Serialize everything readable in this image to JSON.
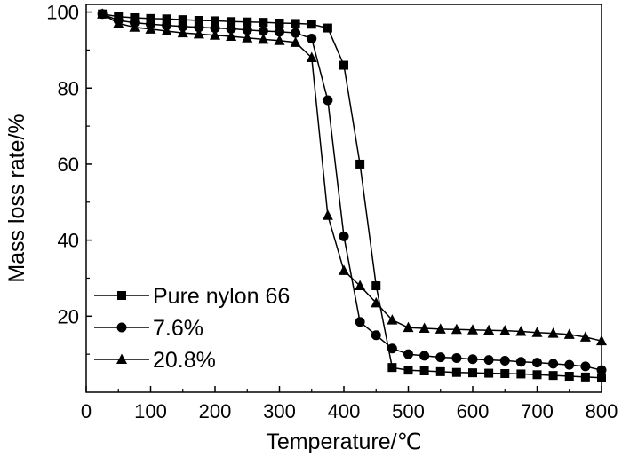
{
  "chart_data": {
    "type": "line",
    "title": "",
    "xlabel": "Temperature/℃",
    "ylabel": "Mass loss rate/%",
    "xlim": [
      0,
      800
    ],
    "ylim": [
      0,
      102
    ],
    "xticks": [
      0,
      100,
      200,
      300,
      400,
      500,
      600,
      700,
      800
    ],
    "yticks": [
      20,
      40,
      60,
      80,
      100
    ],
    "grid": false,
    "legend_position": "bottom-left",
    "series": [
      {
        "name": "Pure nylon 66",
        "marker": "square",
        "x": [
          25,
          50,
          75,
          100,
          125,
          150,
          175,
          200,
          225,
          250,
          275,
          300,
          325,
          350,
          375,
          400,
          425,
          450,
          475,
          500,
          525,
          550,
          575,
          600,
          625,
          650,
          675,
          700,
          725,
          750,
          775,
          800
        ],
        "y": [
          99.5,
          98.8,
          98.5,
          98.3,
          98.2,
          98.0,
          97.8,
          97.7,
          97.5,
          97.4,
          97.3,
          97.1,
          97.0,
          96.8,
          95.8,
          86.0,
          60.0,
          28.0,
          6.5,
          5.8,
          5.6,
          5.4,
          5.2,
          5.1,
          5.0,
          4.9,
          4.8,
          4.6,
          4.4,
          4.2,
          4.0,
          3.8
        ]
      },
      {
        "name": "7.6%",
        "marker": "circle",
        "x": [
          25,
          50,
          75,
          100,
          125,
          150,
          175,
          200,
          225,
          250,
          275,
          300,
          325,
          350,
          375,
          400,
          425,
          450,
          475,
          500,
          525,
          550,
          575,
          600,
          625,
          650,
          675,
          700,
          725,
          750,
          775,
          800
        ],
        "y": [
          99.5,
          97.8,
          97.2,
          96.8,
          96.5,
          96.2,
          96.0,
          95.8,
          95.6,
          95.3,
          95.0,
          94.8,
          94.5,
          93.0,
          76.8,
          41.0,
          18.5,
          15.0,
          11.5,
          10.0,
          9.6,
          9.2,
          9.0,
          8.7,
          8.5,
          8.3,
          8.0,
          7.8,
          7.5,
          7.2,
          6.8,
          5.8
        ]
      },
      {
        "name": "20.8%",
        "marker": "triangle",
        "x": [
          25,
          50,
          75,
          100,
          125,
          150,
          175,
          200,
          225,
          250,
          275,
          300,
          325,
          350,
          375,
          400,
          425,
          450,
          475,
          500,
          525,
          550,
          575,
          600,
          625,
          650,
          675,
          700,
          725,
          750,
          775,
          800
        ],
        "y": [
          99.5,
          97.0,
          96.0,
          95.5,
          95.0,
          94.5,
          94.2,
          93.9,
          93.6,
          93.2,
          92.8,
          92.5,
          92.0,
          88.0,
          46.5,
          32.0,
          28.0,
          23.5,
          19.0,
          17.0,
          16.8,
          16.6,
          16.5,
          16.4,
          16.3,
          16.2,
          16.0,
          15.7,
          15.5,
          15.2,
          14.5,
          13.5
        ]
      }
    ]
  }
}
